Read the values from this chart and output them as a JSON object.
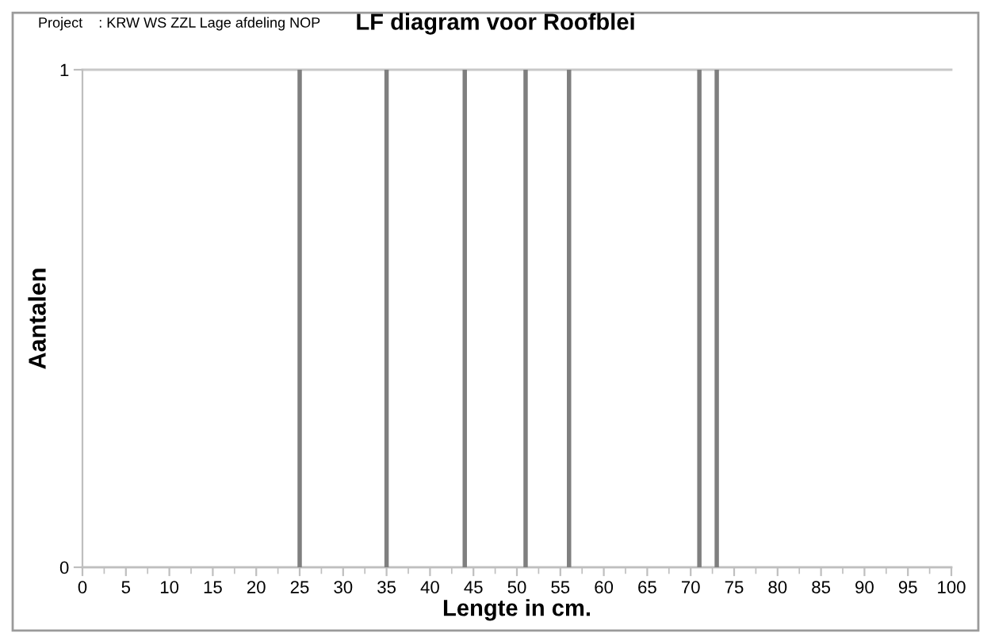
{
  "chart_data": {
    "type": "bar",
    "title": "LF diagram voor Roofblei",
    "annotations": [
      "Project    : KRW WS ZZL Lage afdeling NOP"
    ],
    "xlabel": "Lengte in cm.",
    "ylabel": "Aantalen",
    "x": [
      25,
      35,
      44,
      51,
      56,
      71,
      73
    ],
    "values": [
      1,
      1,
      1,
      1,
      1,
      1,
      1
    ],
    "color": "#7f7f7f",
    "xlim": [
      0,
      100
    ],
    "xticks": [
      0,
      5,
      10,
      15,
      20,
      25,
      30,
      35,
      40,
      45,
      50,
      55,
      60,
      65,
      70,
      75,
      80,
      85,
      90,
      95,
      100
    ],
    "ylim": [
      0,
      1
    ],
    "yticks": [
      0,
      1
    ],
    "grid": "y",
    "legend": false
  }
}
